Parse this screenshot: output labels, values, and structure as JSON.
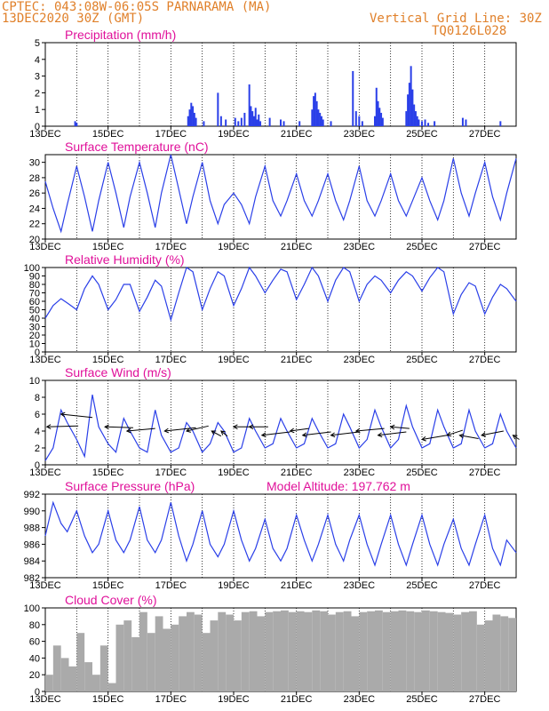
{
  "header": {
    "location": "CPTEC:  043:08W-06:05S  PARNARAMA (MA)",
    "date": "13DEC2020 30Z (GMT)",
    "grid_line": "Vertical Grid Line: 30Z",
    "code": "TQ0126L028"
  },
  "colors": {
    "series": "#2a3fe8",
    "title": "#e0109a",
    "cloud": "#aaaaaa",
    "header": "#e0802a"
  },
  "chart_data": [
    {
      "type": "bar",
      "title": "Precipitation (mm/h)",
      "ylim": [
        0,
        5
      ],
      "yticks": [
        0,
        1,
        2,
        3,
        4,
        5
      ],
      "xticks": [
        "13DEC",
        "15DEC",
        "17DEC",
        "19DEC",
        "21DEC",
        "23DEC",
        "25DEC",
        "27DEC"
      ],
      "x_range": [
        13,
        28
      ],
      "x": [
        13.95,
        14.0,
        17.55,
        17.6,
        17.65,
        17.7,
        17.75,
        17.8,
        18.05,
        18.5,
        18.6,
        18.75,
        19.05,
        19.15,
        19.25,
        19.35,
        19.5,
        19.55,
        19.6,
        19.65,
        19.7,
        19.75,
        19.8,
        19.85,
        20.15,
        20.5,
        20.6,
        21.1,
        21.5,
        21.55,
        21.6,
        21.65,
        21.7,
        21.75,
        21.8,
        21.85,
        22.1,
        22.8,
        22.9,
        23.0,
        23.1,
        23.5,
        23.55,
        23.6,
        23.65,
        23.7,
        23.75,
        24.5,
        24.55,
        24.6,
        24.65,
        24.7,
        24.75,
        24.8,
        24.85,
        24.9,
        25.0,
        25.1,
        25.2,
        25.4,
        26.3,
        26.4,
        27.5
      ],
      "values": [
        0.3,
        0.2,
        0.6,
        1.0,
        1.4,
        1.2,
        0.8,
        0.5,
        0.3,
        2.0,
        0.6,
        0.4,
        0.5,
        0.3,
        0.5,
        0.8,
        2.5,
        1.2,
        0.9,
        0.6,
        1.1,
        0.4,
        0.7,
        0.3,
        0.5,
        0.4,
        0.3,
        0.3,
        1.0,
        1.8,
        2.0,
        1.5,
        1.0,
        0.8,
        0.6,
        0.4,
        0.3,
        3.3,
        0.9,
        0.6,
        0.3,
        0.6,
        2.3,
        1.5,
        1.1,
        0.8,
        0.5,
        0.9,
        1.9,
        2.6,
        3.6,
        2.2,
        1.3,
        0.9,
        0.6,
        0.4,
        0.3,
        0.4,
        0.2,
        0.3,
        0.5,
        0.4,
        0.3
      ]
    },
    {
      "type": "line",
      "title": "Surface Temperature (nC)",
      "ylim": [
        20,
        31
      ],
      "yticks": [
        20,
        22,
        24,
        26,
        28,
        30
      ],
      "xticks": [
        "13DEC",
        "15DEC",
        "17DEC",
        "19DEC",
        "21DEC",
        "23DEC",
        "25DEC",
        "27DEC"
      ],
      "x_range": [
        13,
        28
      ],
      "x": [
        13.0,
        13.25,
        13.5,
        13.7,
        14.0,
        14.25,
        14.5,
        14.7,
        15.0,
        15.25,
        15.5,
        15.7,
        16.0,
        16.25,
        16.5,
        16.7,
        17.0,
        17.25,
        17.5,
        17.7,
        18.0,
        18.25,
        18.5,
        18.7,
        19.0,
        19.25,
        19.5,
        19.7,
        20.0,
        20.25,
        20.5,
        20.7,
        21.0,
        21.25,
        21.5,
        21.7,
        22.0,
        22.25,
        22.5,
        22.7,
        23.0,
        23.25,
        23.5,
        23.7,
        24.0,
        24.25,
        24.5,
        24.7,
        25.0,
        25.25,
        25.5,
        25.7,
        26.0,
        26.25,
        26.5,
        26.7,
        27.0,
        27.25,
        27.5,
        27.7,
        28.0
      ],
      "values": [
        27.5,
        24.0,
        21.0,
        24.5,
        29.5,
        25.5,
        21.0,
        25.0,
        30.0,
        26.0,
        21.5,
        25.5,
        30.0,
        26.0,
        21.5,
        26.0,
        31.0,
        26.5,
        22.0,
        25.5,
        30.0,
        25.0,
        22.0,
        24.5,
        26.0,
        24.5,
        22.0,
        25.5,
        29.5,
        25.0,
        23.0,
        25.0,
        28.5,
        25.0,
        23.0,
        25.0,
        28.5,
        25.0,
        22.5,
        25.0,
        29.5,
        25.0,
        23.0,
        25.0,
        28.5,
        25.0,
        23.0,
        25.0,
        28.0,
        25.0,
        22.5,
        25.0,
        30.5,
        26.0,
        23.0,
        26.0,
        30.0,
        25.5,
        22.5,
        26.0,
        30.5
      ]
    },
    {
      "type": "line",
      "title": "Relative Humidity (%)",
      "ylim": [
        0,
        100
      ],
      "yticks": [
        0,
        10,
        20,
        30,
        40,
        50,
        60,
        70,
        80,
        90,
        100
      ],
      "xticks": [
        "13DEC",
        "15DEC",
        "17DEC",
        "19DEC",
        "21DEC",
        "23DEC",
        "25DEC",
        "27DEC"
      ],
      "x_range": [
        13,
        28
      ],
      "x": [
        13.0,
        13.25,
        13.5,
        13.7,
        14.0,
        14.25,
        14.5,
        14.7,
        15.0,
        15.25,
        15.5,
        15.7,
        16.0,
        16.25,
        16.5,
        16.7,
        17.0,
        17.25,
        17.5,
        17.7,
        18.0,
        18.25,
        18.5,
        18.7,
        19.0,
        19.25,
        19.5,
        19.7,
        20.0,
        20.25,
        20.5,
        20.7,
        21.0,
        21.25,
        21.5,
        21.7,
        22.0,
        22.25,
        22.5,
        22.7,
        23.0,
        23.25,
        23.5,
        23.7,
        24.0,
        24.25,
        24.5,
        24.7,
        25.0,
        25.25,
        25.5,
        25.7,
        26.0,
        26.25,
        26.5,
        26.7,
        27.0,
        27.25,
        27.5,
        27.7,
        28.0
      ],
      "values": [
        40,
        55,
        63,
        58,
        50,
        75,
        90,
        80,
        50,
        62,
        80,
        80,
        48,
        65,
        85,
        78,
        38,
        70,
        100,
        95,
        50,
        75,
        95,
        90,
        55,
        75,
        100,
        90,
        70,
        85,
        98,
        95,
        62,
        80,
        100,
        90,
        60,
        85,
        100,
        95,
        60,
        80,
        90,
        85,
        70,
        85,
        95,
        90,
        72,
        88,
        100,
        95,
        45,
        68,
        82,
        78,
        45,
        65,
        80,
        75,
        60
      ]
    },
    {
      "type": "line",
      "title": "Surface Wind (m/s)",
      "ylim": [
        0,
        10
      ],
      "yticks": [
        0,
        2,
        4,
        6,
        8,
        10
      ],
      "xticks": [
        "13DEC",
        "15DEC",
        "17DEC",
        "19DEC",
        "21DEC",
        "23DEC",
        "25DEC",
        "27DEC"
      ],
      "x_range": [
        13,
        28
      ],
      "x": [
        13.0,
        13.25,
        13.5,
        13.7,
        14.0,
        14.25,
        14.5,
        14.7,
        15.0,
        15.25,
        15.5,
        15.7,
        16.0,
        16.25,
        16.5,
        16.7,
        17.0,
        17.25,
        17.5,
        17.7,
        18.0,
        18.25,
        18.5,
        18.7,
        19.0,
        19.25,
        19.5,
        19.7,
        20.0,
        20.25,
        20.5,
        20.7,
        21.0,
        21.25,
        21.5,
        21.7,
        22.0,
        22.25,
        22.5,
        22.7,
        23.0,
        23.25,
        23.5,
        23.7,
        24.0,
        24.25,
        24.5,
        24.7,
        25.0,
        25.25,
        25.5,
        25.7,
        26.0,
        26.25,
        26.5,
        26.7,
        27.0,
        27.25,
        27.5,
        27.7,
        28.0
      ],
      "values": [
        0.5,
        2.0,
        6.5,
        5.0,
        3.0,
        1.0,
        8.3,
        4.5,
        2.5,
        1.5,
        5.5,
        4.0,
        2.0,
        1.5,
        6.5,
        3.5,
        1.5,
        2.0,
        5.0,
        4.0,
        1.5,
        2.5,
        5.0,
        4.0,
        1.5,
        2.0,
        5.5,
        4.0,
        2.0,
        2.5,
        5.5,
        4.0,
        2.0,
        2.5,
        5.5,
        4.0,
        2.0,
        2.5,
        6.0,
        4.5,
        2.0,
        3.0,
        6.5,
        4.5,
        2.0,
        3.0,
        7.0,
        4.5,
        2.0,
        2.5,
        6.5,
        4.5,
        2.0,
        2.5,
        6.5,
        4.0,
        2.0,
        2.5,
        6.0,
        4.0,
        2.0
      ],
      "arrows": [
        {
          "x": 13.05,
          "y": 4.5,
          "dx": 1.0,
          "dy": 0.1
        },
        {
          "x": 13.5,
          "y": 6.0,
          "dx": 1.0,
          "dy": -0.4
        },
        {
          "x": 14.9,
          "y": 4.5,
          "dx": 0.9,
          "dy": -0.1
        },
        {
          "x": 15.6,
          "y": 4.0,
          "dx": 0.9,
          "dy": 0.3
        },
        {
          "x": 16.8,
          "y": 4.0,
          "dx": 1.0,
          "dy": 0.4
        },
        {
          "x": 17.5,
          "y": 4.0,
          "dx": 0.7,
          "dy": 0.6
        },
        {
          "x": 18.3,
          "y": 4.0,
          "dx": 0.3,
          "dy": -0.6
        },
        {
          "x": 18.6,
          "y": 4.0,
          "dx": 0.2,
          "dy": -0.6
        },
        {
          "x": 19.0,
          "y": 4.5,
          "dx": 0.5,
          "dy": 0.0
        },
        {
          "x": 19.5,
          "y": 4.5,
          "dx": 0.6,
          "dy": 0.0
        },
        {
          "x": 19.9,
          "y": 3.5,
          "dx": 0.9,
          "dy": 0.4
        },
        {
          "x": 20.8,
          "y": 4.0,
          "dx": 0.6,
          "dy": 0.3
        },
        {
          "x": 21.2,
          "y": 3.5,
          "dx": 0.9,
          "dy": 0.4
        },
        {
          "x": 22.1,
          "y": 3.5,
          "dx": 0.9,
          "dy": 0.4
        },
        {
          "x": 22.9,
          "y": 4.0,
          "dx": 0.9,
          "dy": 0.3
        },
        {
          "x": 23.6,
          "y": 3.5,
          "dx": 0.9,
          "dy": 0.4
        },
        {
          "x": 24.0,
          "y": 4.5,
          "dx": 0.6,
          "dy": -0.2
        },
        {
          "x": 25.0,
          "y": 3.0,
          "dx": 0.8,
          "dy": 0.5
        },
        {
          "x": 25.8,
          "y": 3.5,
          "dx": 0.5,
          "dy": 0.6
        },
        {
          "x": 26.2,
          "y": 3.5,
          "dx": 0.6,
          "dy": -0.4
        },
        {
          "x": 26.9,
          "y": 3.5,
          "dx": 0.7,
          "dy": 0.5
        },
        {
          "x": 27.9,
          "y": 3.5,
          "dx": 0.2,
          "dy": -0.5
        }
      ]
    },
    {
      "type": "line",
      "title": "Surface Pressure (hPa)",
      "annotation": "Model Altitude: 197.762 m",
      "ylim": [
        982,
        992
      ],
      "yticks": [
        982,
        984,
        986,
        988,
        990,
        992
      ],
      "xticks": [
        "13DEC",
        "15DEC",
        "17DEC",
        "19DEC",
        "21DEC",
        "23DEC",
        "25DEC",
        "27DEC"
      ],
      "x_range": [
        13,
        28
      ],
      "x": [
        13.0,
        13.25,
        13.5,
        13.7,
        14.0,
        14.25,
        14.5,
        14.7,
        15.0,
        15.25,
        15.5,
        15.7,
        16.0,
        16.25,
        16.5,
        16.7,
        17.0,
        17.25,
        17.5,
        17.7,
        18.0,
        18.25,
        18.5,
        18.7,
        19.0,
        19.25,
        19.5,
        19.7,
        20.0,
        20.25,
        20.5,
        20.7,
        21.0,
        21.25,
        21.5,
        21.7,
        22.0,
        22.25,
        22.5,
        22.7,
        23.0,
        23.25,
        23.5,
        23.7,
        24.0,
        24.25,
        24.5,
        24.7,
        25.0,
        25.25,
        25.5,
        25.7,
        26.0,
        26.25,
        26.5,
        26.7,
        27.0,
        27.25,
        27.5,
        27.7,
        28.0
      ],
      "values": [
        987.0,
        991.0,
        988.5,
        987.5,
        990.0,
        987.0,
        985.0,
        986.0,
        990.0,
        986.5,
        985.0,
        986.5,
        990.5,
        986.5,
        985.0,
        986.5,
        991.0,
        987.0,
        984.0,
        986.0,
        990.0,
        986.0,
        984.5,
        986.0,
        990.0,
        986.5,
        984.0,
        985.5,
        989.0,
        985.5,
        984.0,
        985.5,
        989.5,
        986.5,
        984.0,
        986.0,
        989.5,
        986.0,
        984.0,
        986.5,
        989.5,
        986.0,
        983.5,
        986.0,
        989.5,
        986.0,
        983.5,
        986.0,
        989.5,
        986.0,
        983.5,
        986.0,
        989.0,
        985.5,
        983.5,
        986.0,
        989.5,
        985.5,
        983.5,
        986.5,
        985.0
      ]
    },
    {
      "type": "bar",
      "title": "Cloud Cover (%)",
      "ylim": [
        0,
        100
      ],
      "yticks": [
        0,
        20,
        40,
        60,
        80,
        100
      ],
      "xticks": [
        "13DEC",
        "15DEC",
        "17DEC",
        "19DEC",
        "21DEC",
        "23DEC",
        "25DEC",
        "27DEC"
      ],
      "x_range": [
        13,
        28
      ],
      "x": [
        13.0,
        13.25,
        13.5,
        13.75,
        14.0,
        14.25,
        14.5,
        14.75,
        15.0,
        15.25,
        15.5,
        15.75,
        16.0,
        16.25,
        16.5,
        16.75,
        17.0,
        17.25,
        17.5,
        17.75,
        18.0,
        18.25,
        18.5,
        18.75,
        19.0,
        19.25,
        19.5,
        19.75,
        20.0,
        20.25,
        20.5,
        20.75,
        21.0,
        21.25,
        21.5,
        21.75,
        22.0,
        22.25,
        22.5,
        22.75,
        23.0,
        23.25,
        23.5,
        23.75,
        24.0,
        24.25,
        24.5,
        24.75,
        25.0,
        25.25,
        25.5,
        25.75,
        26.0,
        26.25,
        26.5,
        26.75,
        27.0,
        27.25,
        27.5,
        27.75
      ],
      "values": [
        20,
        55,
        40,
        30,
        70,
        35,
        20,
        55,
        10,
        80,
        85,
        65,
        95,
        70,
        90,
        75,
        80,
        90,
        95,
        92,
        70,
        85,
        95,
        92,
        85,
        95,
        96,
        90,
        95,
        96,
        97,
        95,
        96,
        95,
        97,
        96,
        92,
        95,
        96,
        90,
        95,
        96,
        97,
        95,
        96,
        97,
        96,
        95,
        97,
        96,
        95,
        94,
        92,
        95,
        96,
        80,
        85,
        92,
        90,
        88
      ]
    }
  ]
}
